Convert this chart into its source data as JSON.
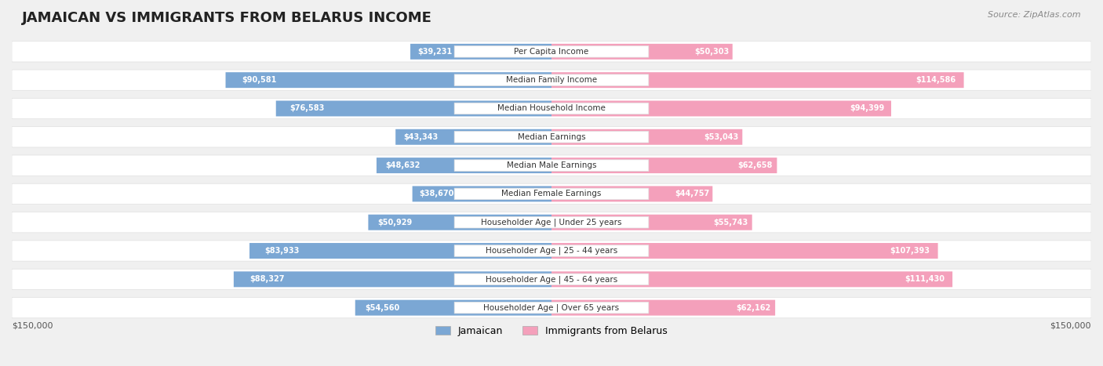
{
  "title": "JAMAICAN VS IMMIGRANTS FROM BELARUS INCOME",
  "source": "Source: ZipAtlas.com",
  "categories": [
    "Per Capita Income",
    "Median Family Income",
    "Median Household Income",
    "Median Earnings",
    "Median Male Earnings",
    "Median Female Earnings",
    "Householder Age | Under 25 years",
    "Householder Age | 25 - 44 years",
    "Householder Age | 45 - 64 years",
    "Householder Age | Over 65 years"
  ],
  "jamaican_values": [
    39231,
    90581,
    76583,
    43343,
    48632,
    38670,
    50929,
    83933,
    88327,
    54560
  ],
  "belarus_values": [
    50303,
    114586,
    94399,
    53043,
    62658,
    44757,
    55743,
    107393,
    111430,
    62162
  ],
  "jamaican_labels": [
    "$39,231",
    "$90,581",
    "$76,583",
    "$43,343",
    "$48,632",
    "$38,670",
    "$50,929",
    "$83,933",
    "$88,327",
    "$54,560"
  ],
  "belarus_labels": [
    "$50,303",
    "$114,586",
    "$94,399",
    "$53,043",
    "$62,658",
    "$44,757",
    "$55,743",
    "$107,393",
    "$111,430",
    "$62,162"
  ],
  "jamaican_color": "#7ba7d4",
  "jamaican_color_dark": "#5b8fc4",
  "belarus_color": "#f4a0bb",
  "belarus_color_dark": "#e8709a",
  "max_value": 150000,
  "xlabel_left": "$150,000",
  "xlabel_right": "$150,000",
  "legend_jamaican": "Jamaican",
  "legend_belarus": "Immigrants from Belarus",
  "bg_color": "#f0f0f0",
  "row_bg": "#f8f8f8",
  "row_border": "#e0e0e0"
}
